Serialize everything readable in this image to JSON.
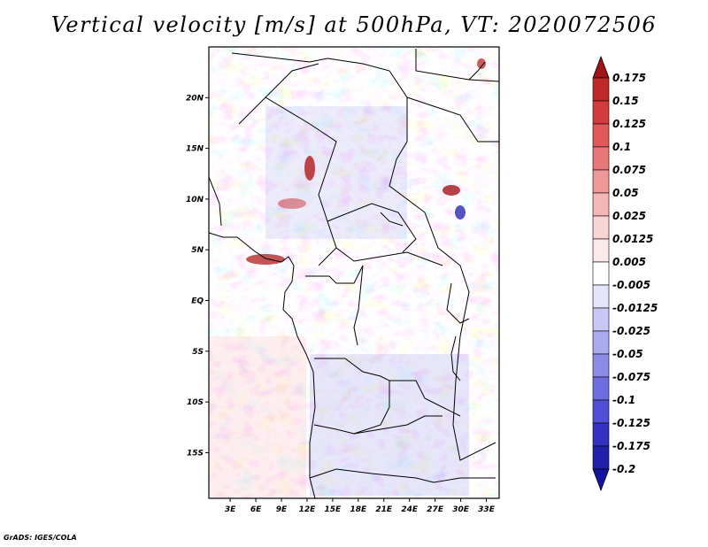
{
  "title": "Vertical velocity [m/s] at 500hPa, VT: 2020072506",
  "credit": "GrADS: IGES/COLA",
  "map": {
    "lat_labels": [
      "20N",
      "15N",
      "10N",
      "5N",
      "EQ",
      "5S",
      "10S",
      "15S"
    ],
    "lon_labels": [
      "3E",
      "6E",
      "9E",
      "12E",
      "15E",
      "18E",
      "21E",
      "24E",
      "27E",
      "30E",
      "33E"
    ],
    "lat_range": [
      -19.5,
      25
    ],
    "lon_range": [
      0.5,
      34.5
    ]
  },
  "colorbar": {
    "labels": [
      "0.175",
      "0.15",
      "0.125",
      "0.1",
      "0.075",
      "0.05",
      "0.025",
      "0.0125",
      "0.005",
      "-0.005",
      "-0.0125",
      "-0.025",
      "-0.05",
      "-0.075",
      "-0.1",
      "-0.125",
      "-0.175",
      "-0.2"
    ],
    "colors": [
      "#a01418",
      "#be2a2a",
      "#d23c3c",
      "#e05a5a",
      "#e87878",
      "#f09898",
      "#f5b6b6",
      "#f9d4d4",
      "#fceaea",
      "#ffffff",
      "#e4e4fb",
      "#c8c8f6",
      "#aaaaf0",
      "#8c8ce8",
      "#6e6ee0",
      "#5050d4",
      "#3232c0",
      "#2020a8",
      "#1414a0"
    ]
  }
}
